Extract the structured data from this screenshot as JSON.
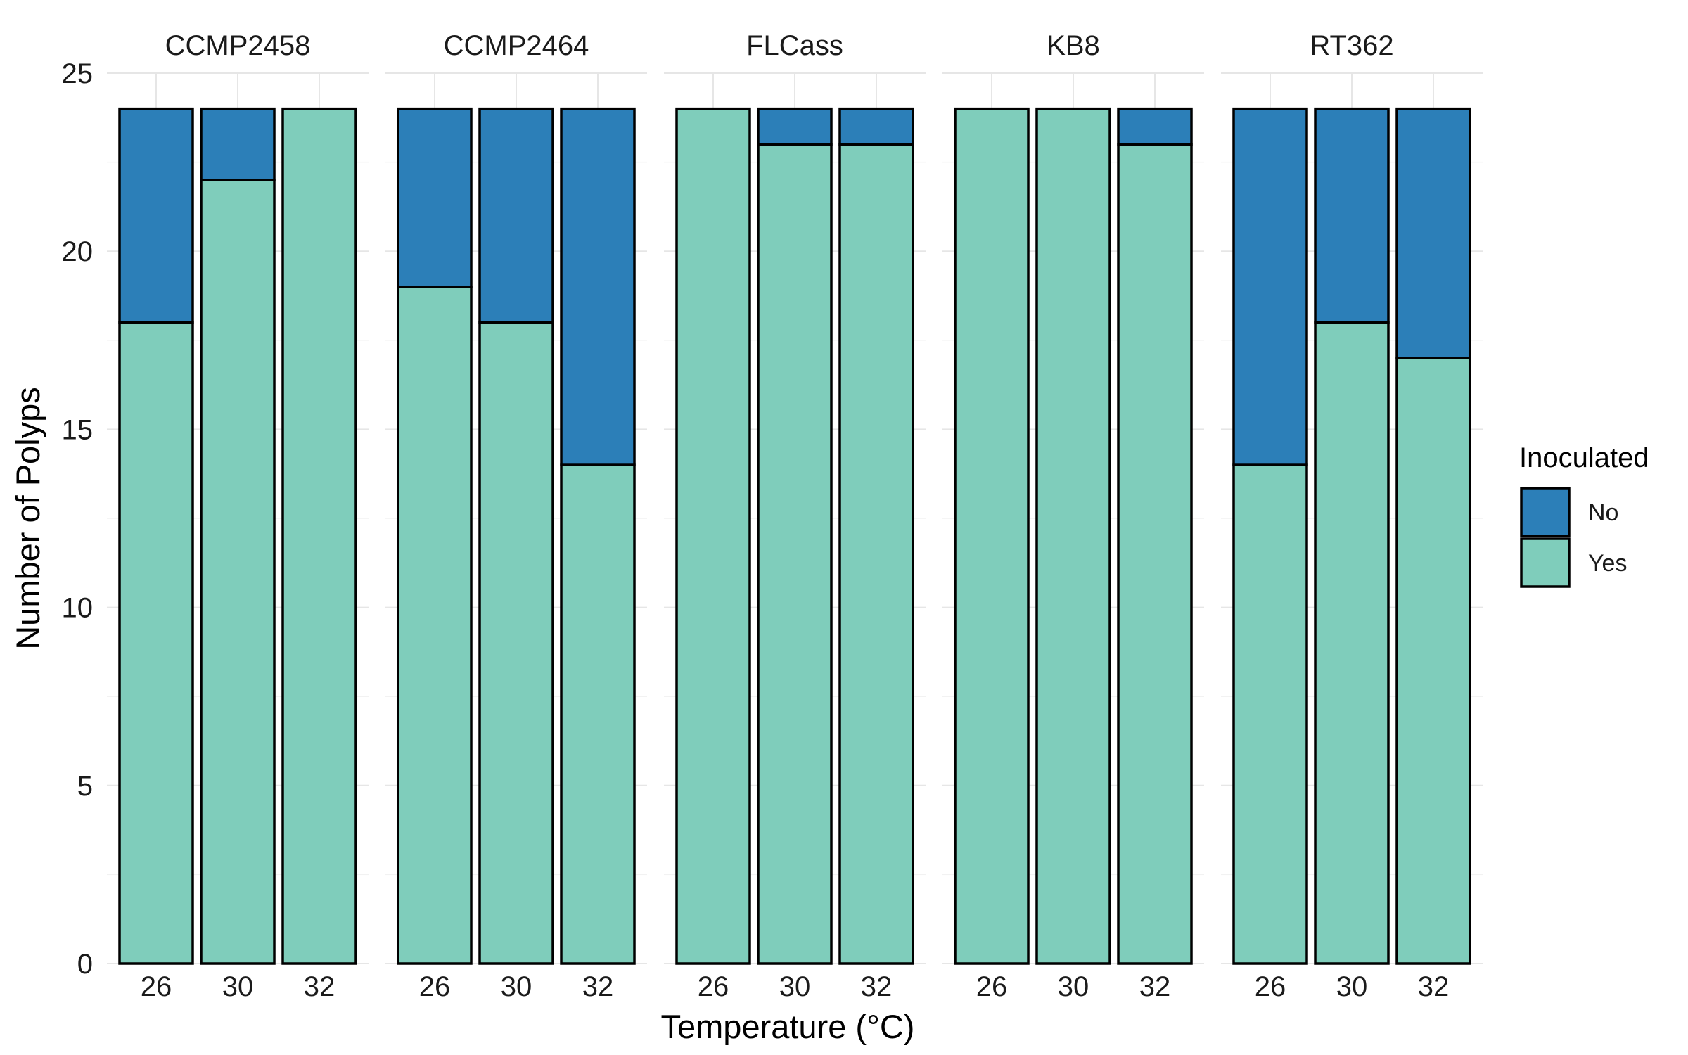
{
  "chart_data": {
    "type": "bar",
    "stacked": true,
    "xlabel": "Temperature (°C)",
    "ylabel": "Number of Polyps",
    "ylim": [
      0,
      25
    ],
    "yticks": [
      0,
      5,
      10,
      15,
      20,
      25
    ],
    "categories": [
      "26",
      "30",
      "32"
    ],
    "facets": [
      "CCMP2458",
      "CCMP2464",
      "FLCass",
      "KB8",
      "RT362"
    ],
    "legend": {
      "title": "Inoculated",
      "position": "right",
      "entries": [
        "No",
        "Yes"
      ]
    },
    "colors": {
      "No": "#2c7fb8",
      "Yes": "#7fcdbb"
    },
    "grid": true,
    "series": [
      {
        "name": "Yes",
        "values": {
          "CCMP2458": [
            18,
            22,
            24
          ],
          "CCMP2464": [
            19,
            18,
            14
          ],
          "FLCass": [
            24,
            23,
            23
          ],
          "KB8": [
            24,
            24,
            23
          ],
          "RT362": [
            14,
            18,
            17
          ]
        }
      },
      {
        "name": "No",
        "values": {
          "CCMP2458": [
            6,
            2,
            0
          ],
          "CCMP2464": [
            5,
            6,
            10
          ],
          "FLCass": [
            0,
            1,
            1
          ],
          "KB8": [
            0,
            0,
            1
          ],
          "RT362": [
            10,
            6,
            7
          ]
        }
      }
    ]
  }
}
